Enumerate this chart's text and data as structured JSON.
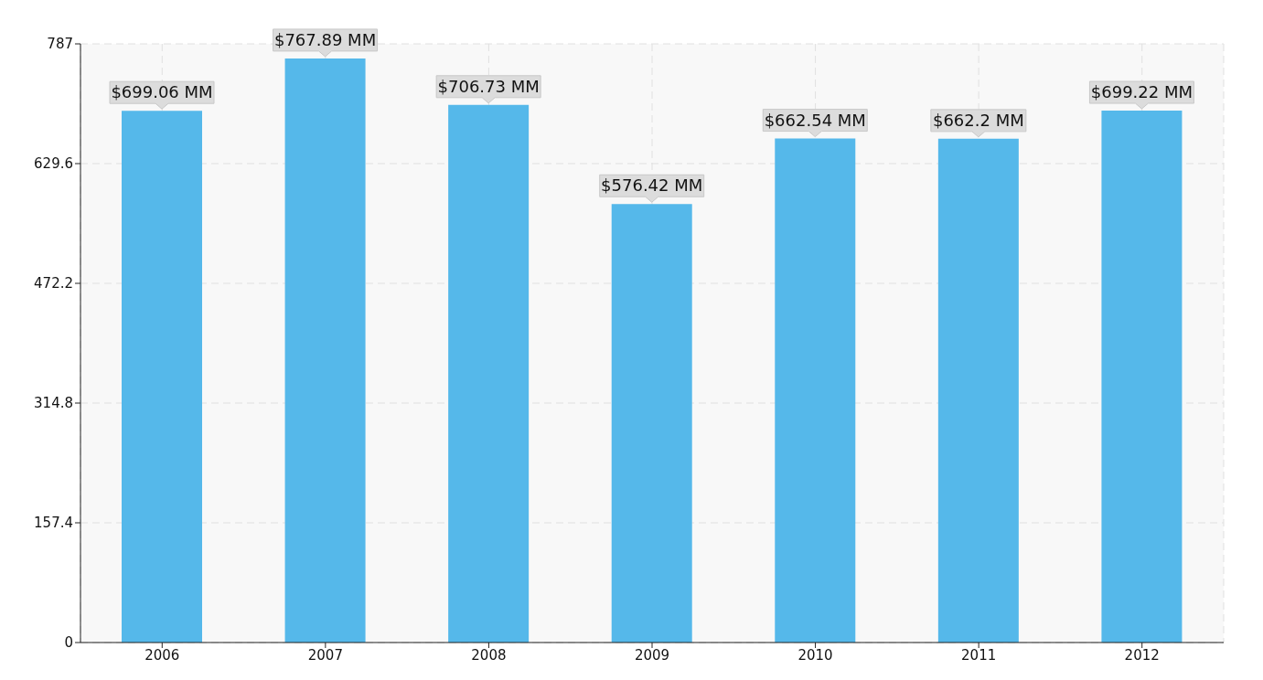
{
  "chart_data": {
    "type": "bar",
    "categories": [
      "2006",
      "2007",
      "2008",
      "2009",
      "2010",
      "2011",
      "2012"
    ],
    "values": [
      699.06,
      767.89,
      706.73,
      576.42,
      662.54,
      662.2,
      699.22
    ],
    "value_labels": [
      "$699.06 MM",
      "$767.89 MM",
      "$706.73 MM",
      "$576.42 MM",
      "$662.54 MM",
      "$662.2 MM",
      "$699.22 MM"
    ],
    "color": "#55b8ea",
    "ylim": [
      0,
      787
    ],
    "yticks": [
      0,
      157.4,
      314.8,
      472.2,
      629.6,
      787
    ],
    "grid": true
  }
}
